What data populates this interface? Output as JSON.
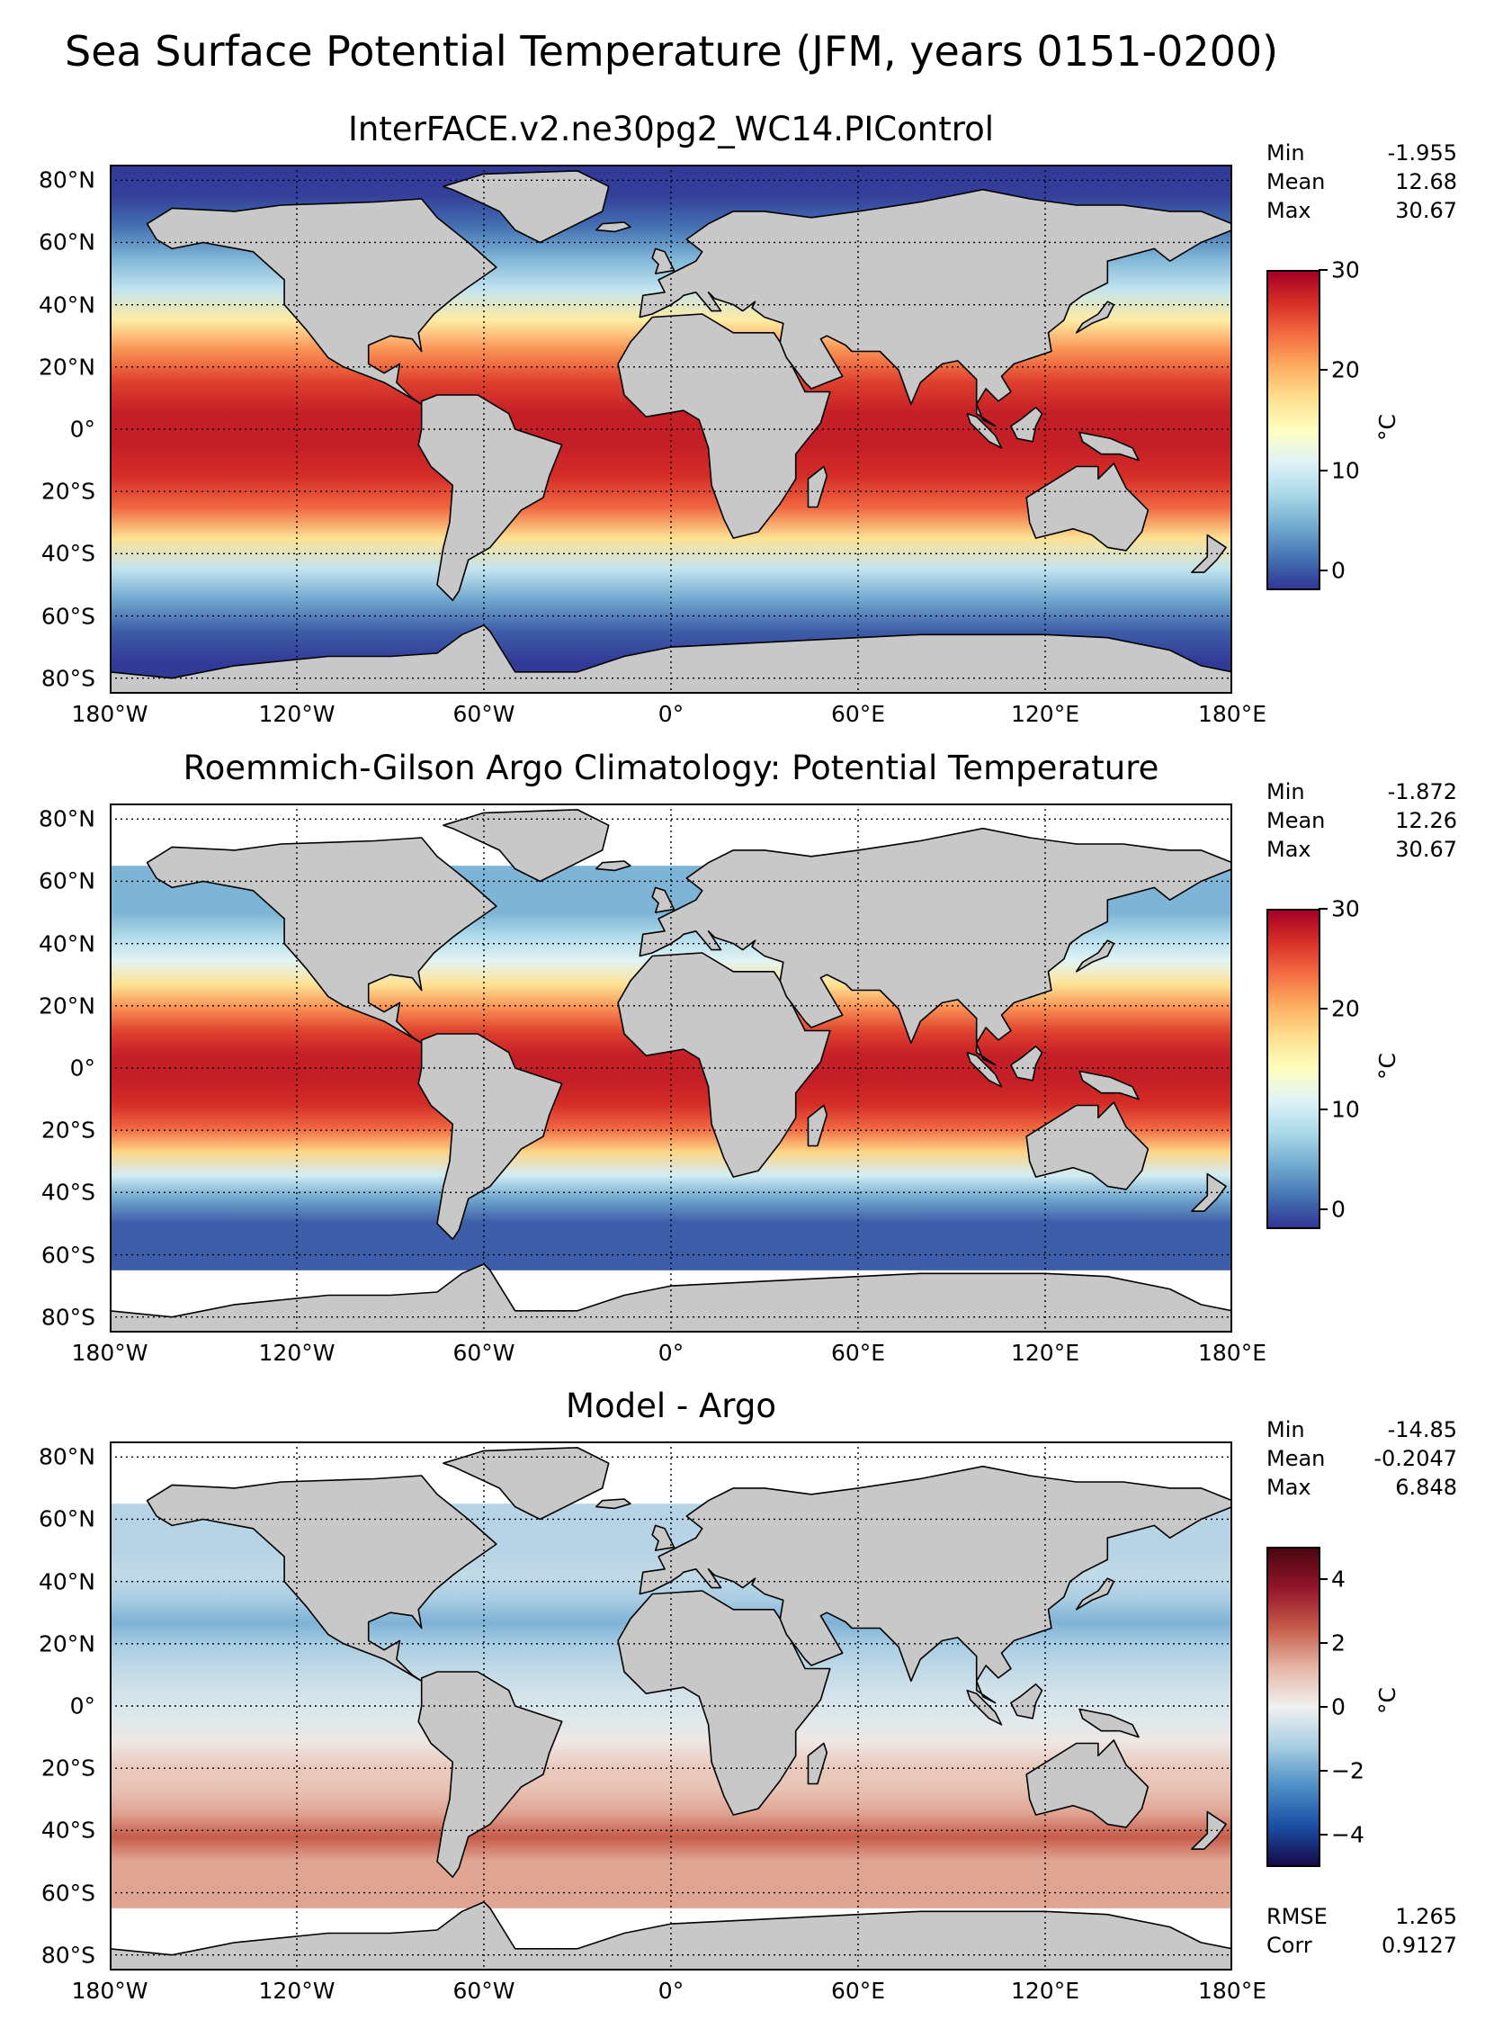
{
  "figure_title": "Sea Surface Potential Temperature (JFM, years 0151-0200)",
  "colors": {
    "land": "#c8c8c8",
    "missing": "#ffffff",
    "temp_colormap": [
      "#313695",
      "#4575b4",
      "#74add1",
      "#abd9e9",
      "#e0f3f8",
      "#ffffbf",
      "#fee090",
      "#fdae61",
      "#f46d43",
      "#d73027",
      "#a50026"
    ],
    "diff_colormap": [
      "#16094a",
      "#1b4fa5",
      "#4d8fc6",
      "#a7cde2",
      "#f0f0f0",
      "#e6b6a5",
      "#c65c4a",
      "#93152b",
      "#4a0610"
    ]
  },
  "chart_data": [
    {
      "type": "heatmap",
      "title": "InterFACE.v2.ne30pg2_WC14.PIControl",
      "xlim": [
        -180,
        180
      ],
      "ylim": [
        -85,
        85
      ],
      "xticks": [
        "180°W",
        "120°W",
        "60°W",
        "0°",
        "60°E",
        "120°E",
        "180°E"
      ],
      "yticks": [
        "80°N",
        "60°N",
        "40°N",
        "20°N",
        "0°",
        "20°S",
        "40°S",
        "60°S",
        "80°S"
      ],
      "grid": true,
      "stats": [
        {
          "label": "Min",
          "value": "-1.955"
        },
        {
          "label": "Mean",
          "value": "12.68"
        },
        {
          "label": "Max",
          "value": "30.67"
        }
      ],
      "colorbar": {
        "label": "°C",
        "vmin": -2,
        "vmax": 30,
        "ticks": [
          "30",
          "20",
          "10",
          "0"
        ],
        "tick_values": [
          30,
          20,
          10,
          0
        ]
      },
      "zonal_profile": {
        "lat": [
          -85,
          -75,
          -65,
          -55,
          -45,
          -35,
          -25,
          -15,
          -5,
          5,
          15,
          25,
          35,
          45,
          55,
          65,
          75,
          85
        ],
        "value": [
          -1.8,
          -1.8,
          0,
          4,
          9,
          17,
          24,
          27,
          28,
          28,
          26,
          22,
          16,
          9,
          5,
          1,
          -1.5,
          -1.9
        ]
      }
    },
    {
      "type": "heatmap",
      "title": "Roemmich-Gilson Argo Climatology: Potential Temperature",
      "xlim": [
        -180,
        180
      ],
      "ylim": [
        -85,
        85
      ],
      "xticks": [
        "180°W",
        "120°W",
        "60°W",
        "0°",
        "60°E",
        "120°E",
        "180°E"
      ],
      "yticks": [
        "80°N",
        "60°N",
        "40°N",
        "20°N",
        "0°",
        "20°S",
        "40°S",
        "60°S",
        "80°S"
      ],
      "grid": true,
      "stats": [
        {
          "label": "Min",
          "value": "-1.872"
        },
        {
          "label": "Mean",
          "value": "12.26"
        },
        {
          "label": "Max",
          "value": "30.67"
        }
      ],
      "colorbar": {
        "label": "°C",
        "vmin": -2,
        "vmax": 30,
        "ticks": [
          "30",
          "20",
          "10",
          "0"
        ],
        "tick_values": [
          30,
          20,
          10,
          0
        ]
      },
      "zonal_profile": {
        "lat": [
          -65,
          -55,
          -45,
          -35,
          -25,
          -15,
          -5,
          5,
          15,
          25,
          35,
          45,
          55,
          65
        ],
        "value": [
          0,
          4,
          10,
          18,
          24,
          27,
          28,
          28,
          26,
          22,
          17,
          11,
          8,
          5
        ]
      }
    },
    {
      "type": "heatmap",
      "title": "Model - Argo",
      "xlim": [
        -180,
        180
      ],
      "ylim": [
        -85,
        85
      ],
      "xticks": [
        "180°W",
        "120°W",
        "60°W",
        "0°",
        "60°E",
        "120°E",
        "180°E"
      ],
      "yticks": [
        "80°N",
        "60°N",
        "40°N",
        "20°N",
        "0°",
        "20°S",
        "40°S",
        "60°S",
        "80°S"
      ],
      "grid": true,
      "stats": [
        {
          "label": "Min",
          "value": "-14.85"
        },
        {
          "label": "Mean",
          "value": "-0.2047"
        },
        {
          "label": "Max",
          "value": "6.848"
        }
      ],
      "bottom_stats": [
        {
          "label": "RMSE",
          "value": "1.265"
        },
        {
          "label": "Corr",
          "value": "0.9127"
        }
      ],
      "colorbar": {
        "label": "°C",
        "vmin": -5,
        "vmax": 5,
        "ticks": [
          "4",
          "2",
          "0",
          "−2",
          "−4"
        ],
        "tick_values": [
          4,
          2,
          0,
          -2,
          -4
        ]
      },
      "zonal_profile": {
        "lat": [
          -65,
          -55,
          -45,
          -35,
          -25,
          -15,
          -5,
          5,
          15,
          25,
          35,
          45,
          55,
          65
        ],
        "value": [
          1.5,
          2.5,
          1.5,
          1.0,
          0.8,
          0.2,
          -0.3,
          -0.5,
          -0.8,
          -1.2,
          -1.8,
          -1.2,
          -0.8,
          -1.0
        ]
      }
    }
  ]
}
